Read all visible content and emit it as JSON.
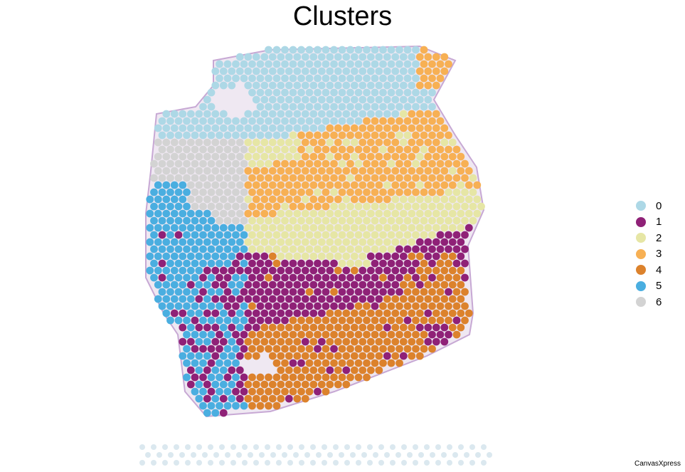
{
  "chart_data": {
    "type": "scatter",
    "title": "Clusters",
    "series": [
      {
        "name": "0",
        "color": "#add8e6"
      },
      {
        "name": "1",
        "color": "#8f2177"
      },
      {
        "name": "2",
        "color": "#e6e6a5"
      },
      {
        "name": "3",
        "color": "#f7b054"
      },
      {
        "name": "4",
        "color": "#dc822c"
      },
      {
        "name": "5",
        "color": "#4aaee0"
      },
      {
        "name": "6",
        "color": "#d3d3d3"
      }
    ],
    "background": "tissue-image",
    "legend_position": "right",
    "grid": false
  },
  "footer": {
    "credit": "CanvasXpress"
  }
}
